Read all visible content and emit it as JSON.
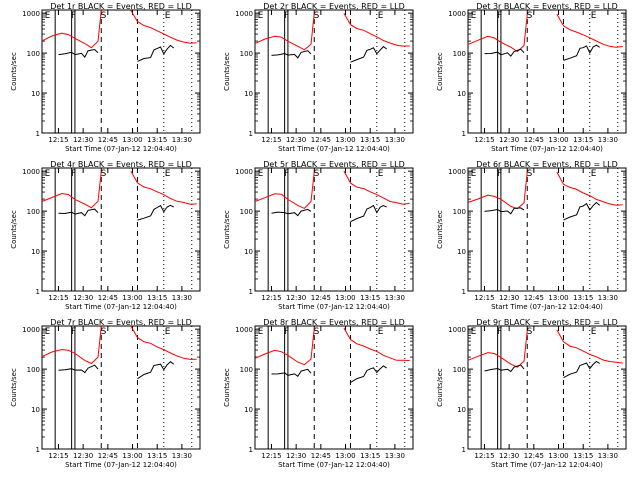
{
  "colors": {
    "events": "#000000",
    "lld": "#ff0000",
    "background": "#ffffff"
  },
  "common": {
    "ylabel": "Counts/sec",
    "xlabel": "Start Time (07-Jan-12 12:04:40)",
    "xticks_minutes": [
      10,
      25,
      40,
      55,
      70,
      85
    ],
    "ytick_labels": [
      "1",
      "10",
      "100",
      "1000"
    ],
    "ytick_values": [
      1,
      10,
      100,
      1000
    ],
    "ylim": [
      1,
      1200
    ],
    "xlim_minutes": [
      0,
      96
    ],
    "markers": {
      "F": "F",
      "S": "S",
      "E": "E"
    }
  },
  "chart_data": [
    {
      "type": "line",
      "title": "Det 1r BLACK = Events, RED = LLD",
      "xtick_labels": [
        "12:15",
        "12:30",
        "12:45",
        "13:00",
        "13:15",
        "13:30"
      ],
      "variant": 0
    },
    {
      "type": "line",
      "title": "Det 2r BLACK = Events, RED = LLD",
      "xtick_labels": [
        "12:15",
        "12:30",
        "12:45",
        "13:00",
        "13:15",
        "13:30"
      ],
      "variant": 1
    },
    {
      "type": "line",
      "title": "Det 3r BLACK = Events, RED = LLD",
      "xtick_labels": [
        "12:15",
        "12:30",
        "12:45",
        "13:00",
        "13:15",
        "13:30"
      ],
      "variant": 2
    },
    {
      "type": "line",
      "title": "Det 4r BLACK = Events, RED = LLD",
      "xtick_labels": [
        "12:15",
        "12:30",
        "12:45",
        "13:00",
        "13:15",
        "13:30"
      ],
      "variant": 1
    },
    {
      "type": "line",
      "title": "Det 5r BLACK = Events, RED = LLD",
      "xtick_labels": [
        "12:15",
        "12:30",
        "12:45",
        "13:00",
        "13:15",
        "13:30"
      ],
      "variant": 1
    },
    {
      "type": "line",
      "title": "Det 6r BLACK = Events, RED = LLD",
      "xtick_labels": [
        "12:15",
        "12:30",
        "12:45",
        "13:00",
        "13:15",
        "13:30"
      ],
      "variant": 2
    },
    {
      "type": "line",
      "title": "Det 7r BLACK = Events, RED = LLD",
      "xtick_labels": [
        "12:15",
        "12:30",
        "12:45",
        "13:00",
        "13:15",
        "13:30"
      ],
      "variant": 0
    },
    {
      "type": "line",
      "title": "Det 8r BLACK = Events, RED = LLD",
      "xtick_labels": [
        "12:15",
        "12:30",
        "12:45",
        "13:00",
        "13:15",
        "13:30"
      ],
      "variant": 3
    },
    {
      "type": "line",
      "title": "Det 9r BLACK = Events, RED = LLD",
      "xtick_labels": [
        "12:15",
        "12:30",
        "12:45",
        "13:00",
        "13:15",
        "13:30"
      ],
      "variant": 2
    }
  ],
  "time_markers_minutes": {
    "solid": [
      8,
      18,
      20
    ],
    "dashed": [
      36,
      58
    ],
    "dotted": [
      74,
      91
    ],
    "letters": [
      {
        "label": "E",
        "t": 1
      },
      {
        "label": "F",
        "t": 17
      },
      {
        "label": "S",
        "t": 35
      },
      {
        "label": "E",
        "t": 74
      }
    ]
  },
  "series": {
    "lld": [
      [
        0,
        200
      ],
      [
        6,
        260
      ],
      [
        12,
        320
      ],
      [
        16,
        300
      ],
      [
        20,
        240
      ],
      [
        26,
        170
      ],
      [
        30,
        140
      ],
      [
        34,
        200
      ],
      [
        36,
        1200
      ]
    ],
    "lld2": [
      [
        54,
        1200
      ],
      [
        58,
        600
      ],
      [
        62,
        480
      ],
      [
        66,
        430
      ],
      [
        70,
        360
      ],
      [
        74,
        300
      ],
      [
        78,
        250
      ],
      [
        82,
        210
      ],
      [
        86,
        190
      ],
      [
        90,
        180
      ],
      [
        94,
        180
      ]
    ],
    "events": [
      [
        10,
        90
      ],
      [
        14,
        95
      ],
      [
        18,
        100
      ],
      [
        20,
        90
      ],
      [
        24,
        95
      ],
      [
        26,
        80
      ],
      [
        28,
        110
      ],
      [
        32,
        120
      ],
      [
        34,
        100
      ]
    ],
    "events2": [
      [
        58,
        60
      ],
      [
        62,
        70
      ],
      [
        66,
        80
      ],
      [
        68,
        120
      ],
      [
        70,
        130
      ],
      [
        72,
        140
      ],
      [
        74,
        100
      ],
      [
        76,
        130
      ],
      [
        78,
        150
      ],
      [
        80,
        130
      ]
    ]
  }
}
